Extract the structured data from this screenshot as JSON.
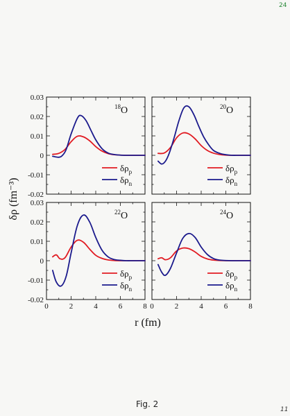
{
  "page": {
    "number_top": "24",
    "number_bottom": "11",
    "caption": "Fig. 2"
  },
  "colors": {
    "proton": "#e11b22",
    "neutron": "#1b1a8c",
    "axis": "#111111"
  },
  "shared_labels": {
    "ylabel": "δρ (fm⁻³)",
    "xlabel": "r (fm)"
  },
  "chart_data": [
    {
      "type": "line",
      "title": "18O",
      "title_mass": "18",
      "title_elem": "O",
      "xlim": [
        0,
        8
      ],
      "ylim": [
        -0.02,
        0.03
      ],
      "yticks": [
        "0.03",
        "0.02",
        "0.01",
        "0",
        "-0.01",
        "-0.02"
      ],
      "xticks": [],
      "legend": "lower-right",
      "series": [
        {
          "name": "δρp",
          "key": "p",
          "x": [
            0.5,
            1.0,
            1.5,
            2.0,
            2.5,
            3.0,
            3.5,
            4.0,
            4.5,
            5.0,
            5.5,
            6.0,
            6.5,
            7.0,
            7.5,
            8.0
          ],
          "y": [
            0.0005,
            0.001,
            0.003,
            0.007,
            0.0098,
            0.0095,
            0.0075,
            0.0045,
            0.0022,
            0.0009,
            0.0003,
            0.0001,
            0.0,
            0.0,
            0.0,
            0.0
          ]
        },
        {
          "name": "δρn",
          "key": "n",
          "x": [
            0.5,
            1.0,
            1.3,
            1.6,
            2.0,
            2.5,
            2.8,
            3.2,
            3.6,
            4.0,
            4.5,
            5.0,
            5.5,
            6.0,
            6.5,
            7.0,
            7.5,
            8.0
          ],
          "y": [
            -0.0005,
            -0.001,
            0.0,
            0.003,
            0.011,
            0.019,
            0.0205,
            0.018,
            0.013,
            0.008,
            0.0035,
            0.0012,
            0.0004,
            0.0001,
            0.0,
            0.0,
            0.0,
            0.0
          ]
        }
      ]
    },
    {
      "type": "line",
      "title": "20O",
      "title_mass": "20",
      "title_elem": "O",
      "xlim": [
        0,
        8
      ],
      "ylim": [
        -0.02,
        0.03
      ],
      "yticks": [],
      "xticks": [],
      "legend": "lower-right",
      "series": [
        {
          "name": "δρp",
          "key": "p",
          "x": [
            0.5,
            1.0,
            1.5,
            2.0,
            2.5,
            3.0,
            3.5,
            4.0,
            4.5,
            5.0,
            5.5,
            6.0,
            6.5,
            7.0,
            7.5,
            8.0
          ],
          "y": [
            0.001,
            0.0012,
            0.004,
            0.009,
            0.0115,
            0.011,
            0.0085,
            0.005,
            0.0025,
            0.0011,
            0.0004,
            0.0001,
            0.0,
            0.0,
            0.0,
            0.0
          ]
        },
        {
          "name": "δρn",
          "key": "n",
          "x": [
            0.5,
            0.8,
            1.1,
            1.4,
            1.8,
            2.2,
            2.6,
            3.0,
            3.4,
            3.8,
            4.2,
            4.6,
            5.0,
            5.5,
            6.0,
            6.5,
            7.0,
            7.5,
            8.0
          ],
          "y": [
            -0.003,
            -0.0045,
            -0.003,
            0.001,
            0.009,
            0.018,
            0.0245,
            0.025,
            0.021,
            0.015,
            0.0095,
            0.0055,
            0.0025,
            0.001,
            0.0003,
            0.0,
            0.0,
            0.0,
            0.0
          ]
        }
      ]
    },
    {
      "type": "line",
      "title": "22O",
      "title_mass": "22",
      "title_elem": "O",
      "xlim": [
        0,
        8
      ],
      "ylim": [
        -0.02,
        0.03
      ],
      "yticks": [
        "0.03",
        "0.02",
        "0.01",
        "0",
        "-0.01",
        "-0.02"
      ],
      "xticks": [
        "0",
        "2",
        "4",
        "6",
        "8"
      ],
      "legend": "lower-right",
      "series": [
        {
          "name": "δρp",
          "key": "p",
          "x": [
            0.5,
            0.8,
            1.1,
            1.5,
            2.0,
            2.5,
            3.0,
            3.5,
            4.0,
            4.5,
            5.0,
            5.5,
            6.0,
            6.5,
            7.0,
            7.5,
            8.0
          ],
          "y": [
            0.002,
            0.003,
            0.001,
            0.0015,
            0.007,
            0.0105,
            0.0095,
            0.006,
            0.0028,
            0.0012,
            0.0004,
            0.0001,
            0.0,
            0.0,
            0.0,
            0.0,
            0.0
          ]
        },
        {
          "name": "δρn",
          "key": "n",
          "x": [
            0.5,
            0.8,
            1.2,
            1.6,
            2.0,
            2.5,
            3.0,
            3.5,
            4.0,
            4.5,
            5.0,
            5.5,
            6.0,
            6.5,
            7.0,
            7.5,
            8.0
          ],
          "y": [
            -0.005,
            -0.011,
            -0.013,
            -0.008,
            0.004,
            0.018,
            0.0235,
            0.02,
            0.012,
            0.0055,
            0.002,
            0.0006,
            0.0002,
            0.0,
            0.0,
            0.0,
            0.0
          ]
        }
      ]
    },
    {
      "type": "line",
      "title": "24O",
      "title_mass": "24",
      "title_elem": "O",
      "xlim": [
        0,
        8
      ],
      "ylim": [
        -0.02,
        0.03
      ],
      "yticks": [],
      "xticks": [
        "0",
        "2",
        "4",
        "6",
        "8"
      ],
      "legend": "lower-right",
      "series": [
        {
          "name": "δρp",
          "key": "p",
          "x": [
            0.5,
            0.8,
            1.1,
            1.5,
            2.0,
            2.5,
            3.0,
            3.5,
            4.0,
            4.5,
            5.0,
            5.5,
            6.0,
            6.5,
            7.0,
            7.5,
            8.0
          ],
          "y": [
            0.001,
            0.0015,
            0.0005,
            0.0015,
            0.005,
            0.0065,
            0.0062,
            0.0045,
            0.0022,
            0.0009,
            0.0003,
            0.0001,
            0.0,
            0.0,
            0.0,
            0.0,
            0.0
          ]
        },
        {
          "name": "δρn",
          "key": "n",
          "x": [
            0.5,
            0.8,
            1.1,
            1.5,
            2.0,
            2.5,
            3.0,
            3.5,
            4.0,
            4.5,
            5.0,
            5.5,
            6.0,
            6.5,
            7.0,
            7.5,
            8.0
          ],
          "y": [
            -0.002,
            -0.006,
            -0.0075,
            -0.004,
            0.004,
            0.0115,
            0.014,
            0.012,
            0.007,
            0.0032,
            0.0011,
            0.0003,
            0.0001,
            0.0,
            0.0,
            0.0,
            0.0
          ]
        }
      ]
    }
  ]
}
